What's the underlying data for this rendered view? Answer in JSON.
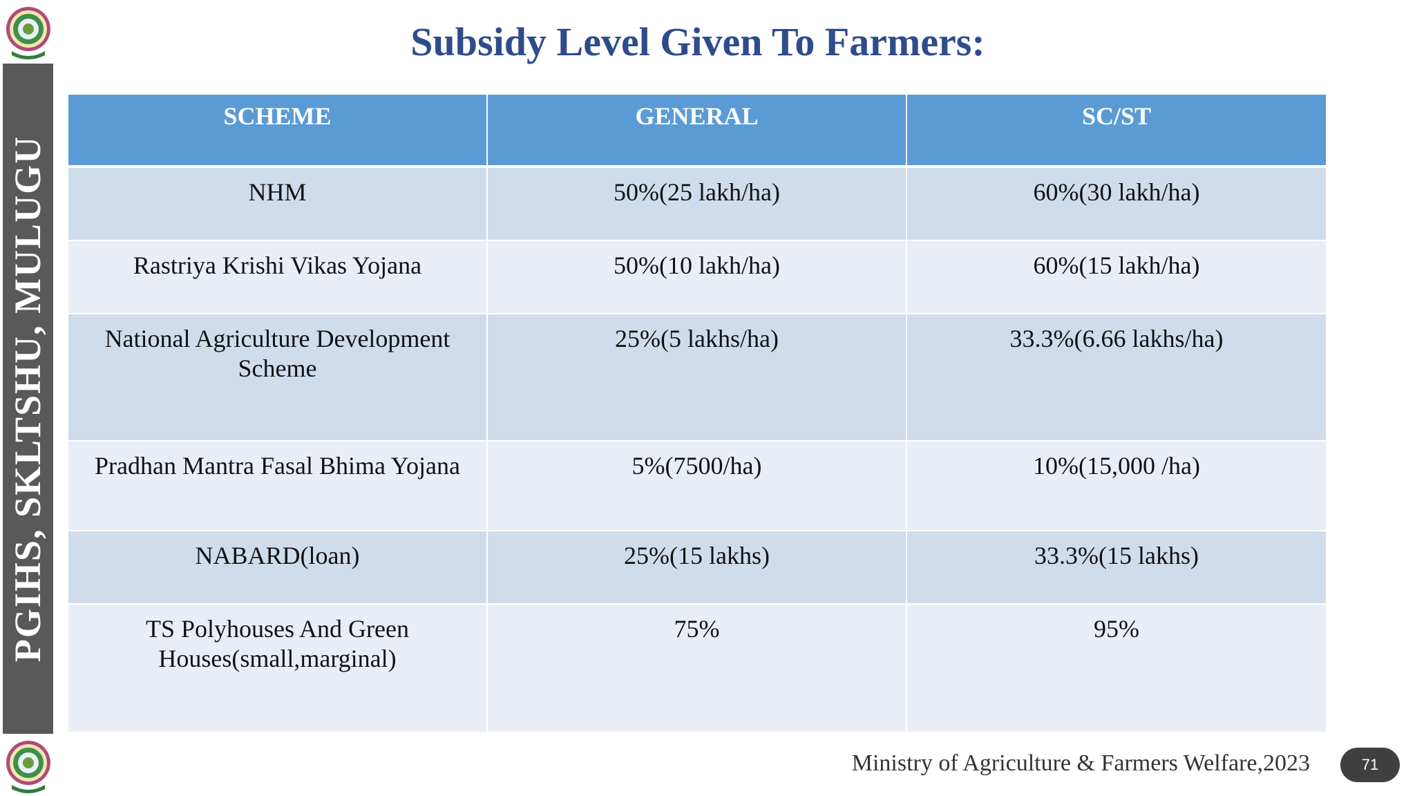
{
  "slide": {
    "title": "Subsidy Level Given To Farmers:",
    "side_label": "PGIHS, SKLTSHU, MULUGU",
    "footer": "Ministry of Agriculture & Farmers Welfare,2023",
    "page_number": "71"
  },
  "table": {
    "headers": [
      "SCHEME",
      "GENERAL",
      "SC/ST"
    ],
    "rows": [
      {
        "scheme": "NHM",
        "general": "50%(25 lakh/ha)",
        "scst": "60%(30 lakh/ha)"
      },
      {
        "scheme": "Rastriya Krishi Vikas Yojana",
        "general": "50%(10 lakh/ha)",
        "scst": "60%(15 lakh/ha)"
      },
      {
        "scheme_line1": "National Agriculture Development",
        "scheme_line2": "Scheme",
        "general": "25%(5 lakhs/ha)",
        "scst": "33.3%(6.66 lakhs/ha)"
      },
      {
        "scheme": "Pradhan Mantra Fasal Bhima Yojana",
        "general": "5%(7500/ha)",
        "scst": "10%(15,000 /ha)"
      },
      {
        "scheme": "NABARD(loan)",
        "general": "25%(15 lakhs)",
        "scst": "33.3%(15 lakhs)"
      },
      {
        "scheme_line1": "TS Polyhouses And Green",
        "scheme_line2": "Houses(small,marginal)",
        "general": "75%",
        "scst": "95%"
      }
    ]
  },
  "colors": {
    "title": "#2e4c8c",
    "header_bg": "#5b9bd5",
    "row_odd": "#cfdcec",
    "row_even": "#e9eef6",
    "side_band": "#595959",
    "page_badge": "#404040"
  },
  "icons": {
    "logo_top": "university-emblem-icon",
    "logo_bottom": "university-emblem-icon"
  }
}
